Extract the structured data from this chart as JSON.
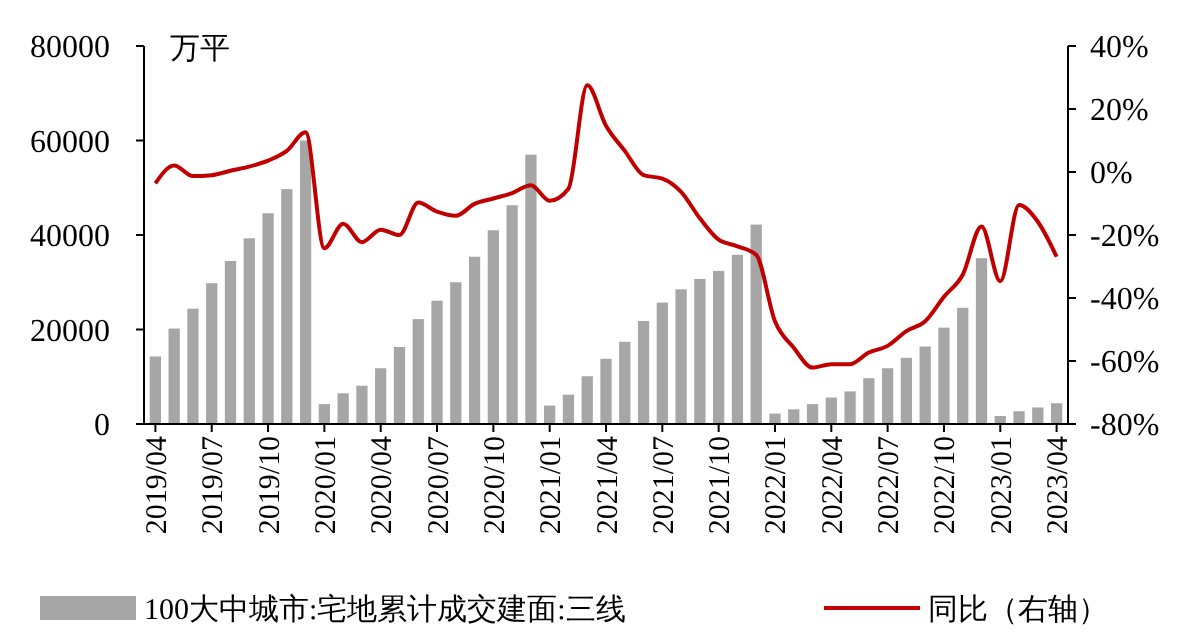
{
  "chart_data": {
    "type": "bar",
    "categories": [
      "2019/04",
      null,
      null,
      "2019/07",
      null,
      null,
      "2019/10",
      null,
      null,
      "2020/01",
      null,
      null,
      "2020/04",
      null,
      null,
      "2020/07",
      null,
      null,
      "2020/10",
      null,
      null,
      "2021/01",
      null,
      null,
      "2021/04",
      null,
      null,
      "2021/07",
      null,
      null,
      "2021/10",
      null,
      null,
      "2022/01",
      null,
      null,
      "2022/04",
      null,
      null,
      "2022/07",
      null,
      null,
      "2022/10",
      null,
      null,
      "2023/01",
      null,
      null,
      "2023/04"
    ],
    "series": [
      {
        "name": "100大中城市:宅地累计成交建面:三线",
        "color": "#a6a6a6",
        "values": [
          14300,
          20200,
          24400,
          29800,
          34500,
          39300,
          44600,
          49700,
          60000,
          4200,
          6500,
          8100,
          11800,
          16300,
          22200,
          26100,
          30000,
          35400,
          41000,
          46300,
          57000,
          3900,
          6200,
          10100,
          13800,
          17400,
          21800,
          25700,
          28500,
          30700,
          32400,
          35800,
          42200,
          2200,
          3100,
          4200,
          5600,
          6900,
          9700,
          11800,
          14000,
          16400,
          20400,
          24600,
          35100,
          1700,
          2700,
          3500,
          4400
        ]
      },
      {
        "name": "同比（右轴）",
        "type": "line",
        "axis": "y2",
        "color": "#c00000",
        "values": [
          -3.6,
          2.1,
          -1.3,
          -1,
          0.4,
          1.7,
          3.6,
          6.7,
          12.6,
          -24.2,
          -16.4,
          -22.3,
          -18.3,
          -20,
          -9.7,
          -12.6,
          -13.9,
          -10.1,
          -8.4,
          -6.7,
          -4.2,
          -9.1,
          -5.3,
          27.5,
          14.7,
          6.7,
          -1,
          -2.1,
          -6.3,
          -14.7,
          -21.5,
          -23.6,
          -26.3,
          -47.4,
          -55.8,
          -62.1,
          -61,
          -61,
          -57.3,
          -55.2,
          -50.5,
          -47.4,
          -39.6,
          -32.6,
          -17.3,
          -34.7,
          -10.5,
          -15.8,
          -26.9
        ]
      }
    ],
    "ylim": [
      0,
      80000
    ],
    "yticks": [
      0,
      20000,
      40000,
      60000,
      80000
    ],
    "y2lim": [
      -80,
      40
    ],
    "y2ticks": [
      {
        "value": -80,
        "label": "-80%"
      },
      {
        "value": -60,
        "label": "-60%"
      },
      {
        "value": -40,
        "label": "-40%"
      },
      {
        "value": -20,
        "label": "-20%"
      },
      {
        "value": 0,
        "label": "0%"
      },
      {
        "value": 20,
        "label": "20%"
      },
      {
        "value": 40,
        "label": "40%"
      }
    ],
    "annotations": [
      "万平"
    ],
    "legend": "bottom",
    "grid": false,
    "marker": "none",
    "line_style": "solid"
  }
}
